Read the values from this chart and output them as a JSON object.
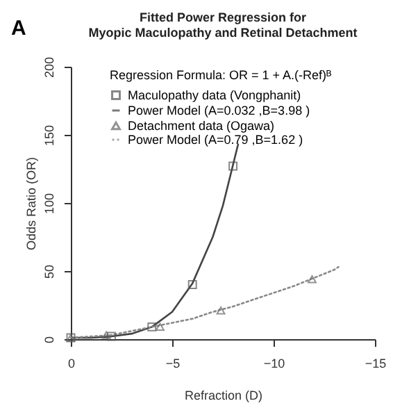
{
  "chart_data": {
    "type": "scatter",
    "title": "Fitted Power Regression for\nMyopic Maculopathy and Retinal Detachment",
    "legend_title": "Regression Formula: OR = 1 + A.(-Ref)ᴮ",
    "xlabel": "Refraction (D)",
    "ylabel": "Odds Ratio (OR)",
    "annotations": [
      "A"
    ],
    "xlim": [
      0,
      -15
    ],
    "xticks": [
      0,
      -5,
      -10,
      -15
    ],
    "ylim": [
      0,
      200
    ],
    "yticks": [
      0,
      50,
      100,
      150,
      200
    ],
    "grid": false,
    "legend": "top",
    "series": [
      {
        "name": "Maculopathy data (Vongphanit)",
        "marker": "square",
        "color": "#555555",
        "x": [
          0,
          -2,
          -4,
          -6,
          -8
        ],
        "values": [
          1,
          2,
          9,
          40,
          127
        ]
      },
      {
        "name": "Power Model (A=0.032 ,B=3.98 )",
        "type": "line",
        "line_style": "solid",
        "color": "#444444",
        "x": [
          0,
          -1,
          -2,
          -3,
          -4,
          -5,
          -6,
          -7,
          -7.5,
          -8,
          -8.25
        ],
        "values": [
          1,
          1,
          2,
          4,
          9,
          20,
          41,
          75,
          98,
          128,
          143
        ]
      },
      {
        "name": "Detachment data (Ogawa)",
        "marker": "triangle",
        "color": "#666666",
        "x": [
          0,
          -1.75,
          -4.4,
          -7.4,
          -11.9
        ],
        "values": [
          1,
          3,
          9,
          21,
          44
        ]
      },
      {
        "name": "Power Model (A=0.79 ,B=1.62 )",
        "type": "line",
        "line_style": "dotted",
        "color": "#888888",
        "x": [
          0,
          -1,
          -2,
          -3,
          -4,
          -5,
          -6,
          -7,
          -8,
          -9,
          -10,
          -11,
          -12,
          -13,
          -13.2
        ],
        "values": [
          1,
          2,
          3,
          6,
          9,
          12,
          15,
          20,
          24,
          29,
          34,
          39,
          45,
          51,
          53
        ]
      }
    ]
  }
}
